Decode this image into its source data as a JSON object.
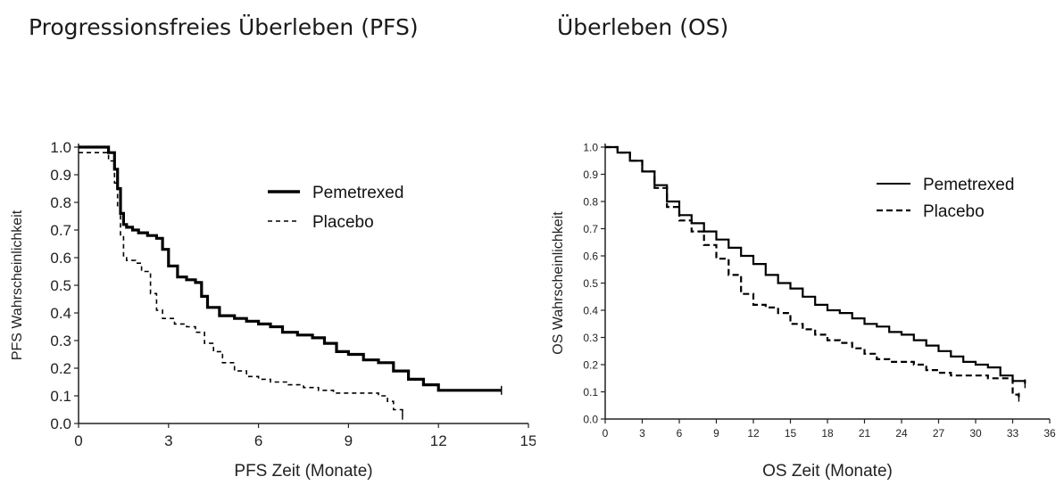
{
  "headings": {
    "left": "Progressionsfreies Überleben (PFS)",
    "right": "Überleben (OS)"
  },
  "chart_data": [
    {
      "type": "line",
      "title": "Progressionsfreies Überleben (PFS)",
      "xlabel": "PFS Zeit (Monate)",
      "ylabel": "PFS Wahrscheinlichkeit",
      "xlim": [
        0,
        15
      ],
      "ylim": [
        0,
        1
      ],
      "xticks": [
        0,
        3,
        6,
        9,
        12,
        15
      ],
      "yticks": [
        0,
        0.1,
        0.2,
        0.3,
        0.4,
        0.5,
        0.6,
        0.7,
        0.8,
        0.9,
        1.0
      ],
      "grid": false,
      "legend_position": "top-right",
      "series": [
        {
          "name": "Pemetrexed",
          "style": "solid",
          "x": [
            0,
            0.5,
            1.0,
            1.2,
            1.3,
            1.4,
            1.5,
            1.6,
            1.8,
            2.0,
            2.3,
            2.6,
            2.8,
            3.0,
            3.3,
            3.6,
            3.9,
            4.1,
            4.3,
            4.7,
            5.2,
            5.6,
            6.0,
            6.4,
            6.8,
            7.3,
            7.8,
            8.2,
            8.6,
            9.0,
            9.5,
            10.0,
            10.5,
            11.0,
            11.5,
            12.0,
            13.0,
            14.1
          ],
          "y": [
            1.0,
            1.0,
            0.98,
            0.92,
            0.85,
            0.76,
            0.72,
            0.71,
            0.7,
            0.69,
            0.68,
            0.67,
            0.63,
            0.57,
            0.53,
            0.52,
            0.51,
            0.46,
            0.42,
            0.39,
            0.38,
            0.37,
            0.36,
            0.35,
            0.33,
            0.32,
            0.31,
            0.29,
            0.26,
            0.25,
            0.23,
            0.22,
            0.19,
            0.16,
            0.14,
            0.12,
            0.12,
            0.12
          ]
        },
        {
          "name": "Placebo",
          "style": "dashed",
          "x": [
            0,
            0.5,
            1.0,
            1.2,
            1.3,
            1.4,
            1.5,
            1.6,
            1.9,
            2.1,
            2.4,
            2.6,
            2.8,
            3.2,
            3.6,
            3.9,
            4.2,
            4.5,
            4.8,
            5.2,
            5.6,
            6.0,
            6.4,
            7.0,
            7.5,
            8.0,
            8.5,
            9.0,
            9.5,
            10.0,
            10.3,
            10.5,
            10.8
          ],
          "y": [
            0.98,
            0.98,
            0.95,
            0.87,
            0.78,
            0.68,
            0.6,
            0.59,
            0.58,
            0.55,
            0.47,
            0.41,
            0.38,
            0.36,
            0.35,
            0.33,
            0.29,
            0.26,
            0.22,
            0.19,
            0.17,
            0.16,
            0.15,
            0.14,
            0.13,
            0.12,
            0.11,
            0.11,
            0.11,
            0.1,
            0.08,
            0.05,
            0.03
          ]
        }
      ]
    },
    {
      "type": "line",
      "title": "Überleben (OS)",
      "xlabel": "OS Zeit (Monate)",
      "ylabel": "OS Wahrscheinlichkeit",
      "xlim": [
        0,
        36
      ],
      "ylim": [
        0,
        1
      ],
      "xticks": [
        0,
        3,
        6,
        9,
        12,
        15,
        18,
        21,
        24,
        27,
        30,
        33,
        36
      ],
      "yticks": [
        0,
        0.1,
        0.2,
        0.3,
        0.4,
        0.5,
        0.6,
        0.7,
        0.8,
        0.9,
        1.0
      ],
      "grid": false,
      "legend_position": "top-right",
      "series": [
        {
          "name": "Pemetrexed",
          "style": "solid",
          "x": [
            0,
            1,
            2,
            3,
            4,
            5,
            6,
            7,
            8,
            9,
            10,
            11,
            12,
            13,
            14,
            15,
            16,
            17,
            18,
            19,
            20,
            21,
            22,
            23,
            24,
            25,
            26,
            27,
            28,
            29,
            30,
            31,
            32,
            33,
            34
          ],
          "y": [
            1.0,
            0.98,
            0.95,
            0.91,
            0.86,
            0.8,
            0.75,
            0.72,
            0.69,
            0.66,
            0.63,
            0.6,
            0.57,
            0.53,
            0.5,
            0.48,
            0.45,
            0.42,
            0.4,
            0.39,
            0.37,
            0.35,
            0.34,
            0.32,
            0.31,
            0.29,
            0.27,
            0.25,
            0.23,
            0.21,
            0.2,
            0.19,
            0.16,
            0.14,
            0.13
          ]
        },
        {
          "name": "Placebo",
          "style": "dashed",
          "x": [
            0,
            1,
            2,
            3,
            4,
            5,
            6,
            7,
            8,
            9,
            10,
            11,
            12,
            13,
            14,
            15,
            16,
            17,
            18,
            19,
            20,
            21,
            22,
            23,
            24,
            25,
            26,
            27,
            28,
            29,
            30,
            31,
            32,
            33,
            33.5
          ],
          "y": [
            1.0,
            0.98,
            0.95,
            0.91,
            0.85,
            0.78,
            0.73,
            0.69,
            0.64,
            0.59,
            0.53,
            0.46,
            0.42,
            0.41,
            0.39,
            0.35,
            0.33,
            0.31,
            0.29,
            0.28,
            0.26,
            0.24,
            0.22,
            0.21,
            0.21,
            0.2,
            0.18,
            0.17,
            0.16,
            0.16,
            0.16,
            0.15,
            0.15,
            0.09,
            0.08
          ]
        }
      ]
    }
  ]
}
